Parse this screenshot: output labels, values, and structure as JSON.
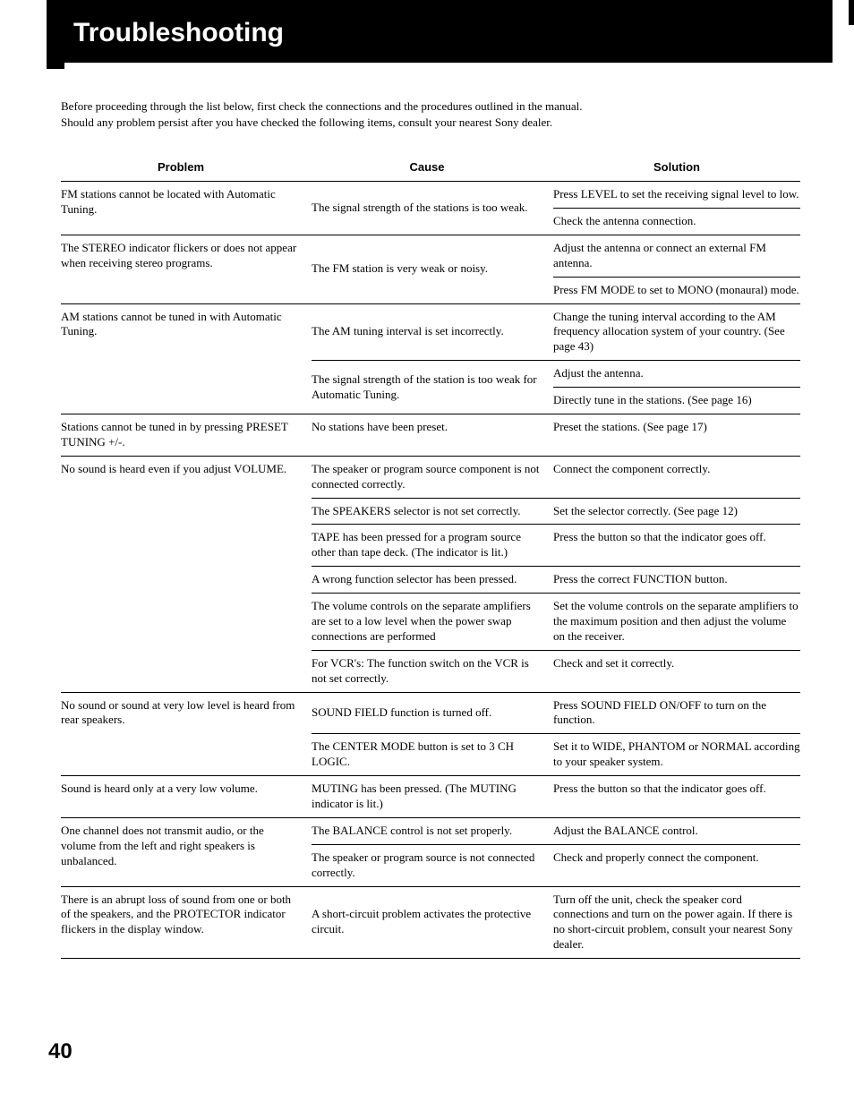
{
  "header": {
    "title": "Troubleshooting"
  },
  "intro": {
    "line1": "Before proceeding through the list below, first check the connections and the procedures outlined in the manual.",
    "line2": "Should any problem persist after you have checked the following items, consult your nearest Sony dealer."
  },
  "table": {
    "headers": {
      "problem": "Problem",
      "cause": "Cause",
      "solution": "Solution"
    },
    "rows": [
      {
        "problem": "FM stations cannot be located with Automatic Tuning.",
        "causes": [
          {
            "cause": "The signal strength of the stations is too weak.",
            "solutions": [
              "Press LEVEL to set the receiving signal level to low.",
              "Check the antenna connection."
            ]
          }
        ]
      },
      {
        "problem": "The STEREO indicator flickers or does not appear when receiving stereo programs.",
        "causes": [
          {
            "cause": "The FM station is very weak or noisy.",
            "solutions": [
              "Adjust the antenna or connect an external FM antenna.",
              "Press FM MODE to set to MONO (monaural) mode."
            ]
          }
        ]
      },
      {
        "problem": "AM stations cannot be tuned in with Automatic Tuning.",
        "causes": [
          {
            "cause": "The AM tuning interval is set incorrectly.",
            "solutions": [
              "Change the tuning interval according to the AM frequency allocation system of your country. (See page 43)"
            ]
          },
          {
            "cause": "The signal strength of the station is too weak for Automatic Tuning.",
            "solutions": [
              "Adjust the antenna.",
              "Directly tune in the stations. (See page 16)"
            ]
          }
        ]
      },
      {
        "problem": "Stations cannot be tuned in by pressing PRESET TUNING +/-.",
        "causes": [
          {
            "cause": "No stations have been preset.",
            "solutions": [
              "Preset the stations. (See page 17)"
            ]
          }
        ]
      },
      {
        "problem": "No sound is heard even if you adjust VOLUME.",
        "causes": [
          {
            "cause": "The speaker or program source component is not connected correctly.",
            "solutions": [
              "Connect the component correctly."
            ]
          },
          {
            "cause": "The SPEAKERS selector is not set correctly.",
            "solutions": [
              "Set the selector correctly. (See page 12)"
            ]
          },
          {
            "cause": "TAPE has been pressed for a program source other than tape deck. (The indicator is lit.)",
            "solutions": [
              "Press the button so that the indicator goes off."
            ]
          },
          {
            "cause": "A wrong function selector has been pressed.",
            "solutions": [
              "Press the correct FUNCTION button."
            ]
          },
          {
            "cause": "The volume controls on the separate amplifiers are set to a low level when the power swap connections are performed",
            "solutions": [
              "Set the volume controls on the separate amplifiers to the maximum position and then adjust the volume on the receiver."
            ]
          },
          {
            "cause": "For VCR's: The function switch on the VCR is not set correctly.",
            "solutions": [
              "Check and set it correctly."
            ]
          }
        ]
      },
      {
        "problem": "No sound or sound at very low level is heard from rear speakers.",
        "causes": [
          {
            "cause": "SOUND FIELD function is turned off.",
            "solutions": [
              "Press SOUND FIELD ON/OFF to turn on the function."
            ]
          },
          {
            "cause": "The CENTER MODE button is set to 3 CH LOGIC.",
            "solutions": [
              "Set it to WIDE, PHANTOM or NORMAL according to your speaker system."
            ]
          }
        ]
      },
      {
        "problem": "Sound is heard only at a very low volume.",
        "causes": [
          {
            "cause": "MUTING has been pressed. (The MUTING indicator is lit.)",
            "solutions": [
              "Press the button so that the indicator goes off."
            ]
          }
        ]
      },
      {
        "problem": "One channel does not transmit audio, or the volume from the left and right speakers is unbalanced.",
        "causes": [
          {
            "cause": "The BALANCE control is not set properly.",
            "solutions": [
              "Adjust the BALANCE control."
            ]
          },
          {
            "cause": "The speaker or program source is not connected correctly.",
            "solutions": [
              "Check and properly connect the component."
            ]
          }
        ]
      },
      {
        "problem": "There is an abrupt loss of sound from one or both of the speakers, and the PROTECTOR indicator flickers in the display window.",
        "causes": [
          {
            "cause": "A short-circuit problem activates the protective circuit.",
            "solutions": [
              "Turn off the unit, check the speaker cord connections and turn on the power again. If there is no short-circuit problem, consult your nearest Sony dealer."
            ]
          }
        ]
      }
    ]
  },
  "pageNumber": "40"
}
